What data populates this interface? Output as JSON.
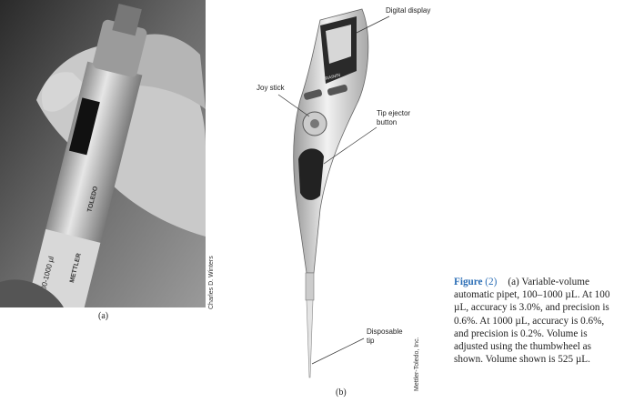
{
  "figure_a": {
    "volume_marking": "100-1000 µl",
    "brand_top": "TOLEDO",
    "brand_bottom": "METTLER",
    "credit": "Charles D. Winters",
    "label": "(a)"
  },
  "figure_b": {
    "brand": "RAININ",
    "callouts": [
      {
        "label": "Digital display"
      },
      {
        "label": "Joy stick"
      },
      {
        "label": "Tip ejector button"
      },
      {
        "label": "Disposable tip"
      }
    ],
    "credit": "Mettler-Toledo, Inc.",
    "label": "(b)"
  },
  "caption": {
    "figure_word": "Figure",
    "figure_number": "(2)",
    "text": "(a) Variable-volume automatic pipet, 100–1000 µL. At 100 µL, accuracy is 3.0%, and precision is 0.6%. At 1000 µL, accuracy is 0.6%, and precision is 0.2%. Volume is adjusted using the thumbwheel as shown. Volume shown is 525 µL."
  }
}
